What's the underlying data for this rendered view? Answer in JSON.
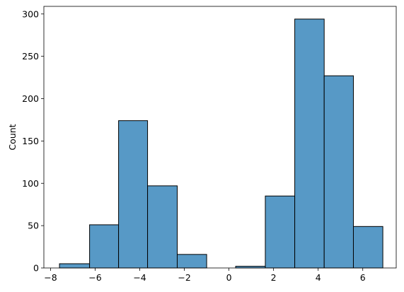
{
  "chart_data": {
    "type": "bar",
    "xlabel": "",
    "ylabel": "Count",
    "xlim": [
      -8.3,
      7.5
    ],
    "ylim": [
      0,
      309
    ],
    "grid": false,
    "bar_color": "#5799c6",
    "edge_color": "#000000",
    "bins": [
      {
        "x0": -7.6,
        "x1": -6.25,
        "count": 5
      },
      {
        "x0": -6.25,
        "x1": -4.95,
        "count": 51
      },
      {
        "x0": -4.95,
        "x1": -3.65,
        "count": 174
      },
      {
        "x0": -3.65,
        "x1": -2.32,
        "count": 97
      },
      {
        "x0": -2.32,
        "x1": -1.0,
        "count": 16
      },
      {
        "x0": -1.0,
        "x1": 0.3,
        "count": 0
      },
      {
        "x0": 0.3,
        "x1": 1.63,
        "count": 2
      },
      {
        "x0": 1.63,
        "x1": 2.95,
        "count": 85
      },
      {
        "x0": 2.95,
        "x1": 4.27,
        "count": 294
      },
      {
        "x0": 4.27,
        "x1": 5.58,
        "count": 227
      },
      {
        "x0": 5.58,
        "x1": 6.9,
        "count": 49
      }
    ],
    "x_ticks": [
      -8,
      -6,
      -4,
      -2,
      0,
      2,
      4,
      6
    ],
    "x_tick_labels": [
      "−8",
      "−6",
      "−4",
      "−2",
      "0",
      "2",
      "4",
      "6"
    ],
    "y_ticks": [
      0,
      50,
      100,
      150,
      200,
      250,
      300
    ],
    "y_tick_labels": [
      "0",
      "50",
      "100",
      "150",
      "200",
      "250",
      "300"
    ]
  }
}
